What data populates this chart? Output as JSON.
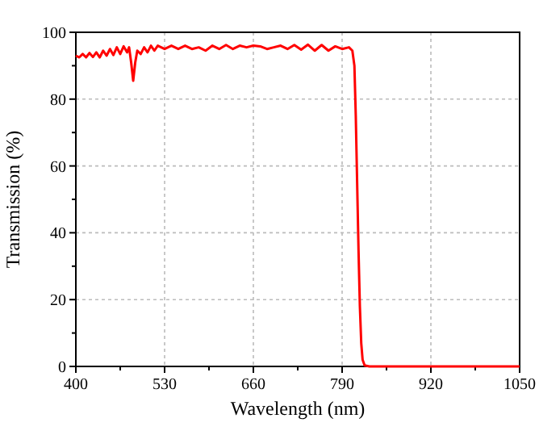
{
  "chart_data": {
    "type": "line",
    "xlabel": "Wavelength (nm)",
    "ylabel": "Transmission (%)",
    "xlim": [
      400,
      1050
    ],
    "xticks": [
      400,
      {
        "value": 465,
        "label": null
      },
      530,
      {
        "value": 595,
        "label": null
      },
      660,
      {
        "value": 725,
        "label": null
      },
      790,
      {
        "value": 855,
        "label": null
      },
      920,
      {
        "value": 985,
        "label": null
      },
      1050
    ],
    "ylim": [
      0,
      100
    ],
    "yticks": [
      0,
      {
        "value": 10,
        "label": null
      },
      20,
      {
        "value": 30,
        "label": null
      },
      40,
      {
        "value": 50,
        "label": null
      },
      60,
      {
        "value": 70,
        "label": null
      },
      80,
      {
        "value": 90,
        "label": null
      },
      100
    ],
    "grid": true,
    "marker": "none",
    "line_style": "solid",
    "series": [
      {
        "color": "#ff0000",
        "x": [
          400,
          405,
          410,
          415,
          420,
          425,
          430,
          435,
          440,
          445,
          450,
          455,
          460,
          465,
          470,
          475,
          478,
          481,
          484,
          487,
          490,
          495,
          500,
          505,
          510,
          515,
          520,
          530,
          540,
          550,
          560,
          570,
          580,
          590,
          600,
          610,
          620,
          630,
          640,
          650,
          660,
          670,
          680,
          690,
          700,
          710,
          720,
          730,
          740,
          750,
          760,
          770,
          780,
          790,
          800,
          805,
          808,
          810,
          812,
          814,
          816,
          818,
          820,
          823,
          830,
          900,
          1000,
          1050
        ],
        "values": [
          93,
          92.5,
          93.5,
          92.5,
          93.8,
          92.6,
          94,
          92.5,
          94.5,
          93,
          95,
          93.2,
          95.5,
          93.5,
          95.8,
          94,
          95.5,
          91,
          85.5,
          91,
          94.5,
          93.5,
          95.5,
          94,
          96,
          94.5,
          96,
          95,
          96,
          95,
          96,
          95,
          95.5,
          94.5,
          96,
          95,
          96.2,
          95,
          96,
          95.5,
          96,
          95.8,
          95,
          95.5,
          96,
          95,
          96.2,
          94.8,
          96.3,
          94.5,
          96.2,
          94.5,
          95.8,
          95,
          95.5,
          94.5,
          90,
          75,
          55,
          35,
          18,
          7,
          2,
          0.3,
          0,
          0,
          0,
          0
        ]
      }
    ]
  }
}
